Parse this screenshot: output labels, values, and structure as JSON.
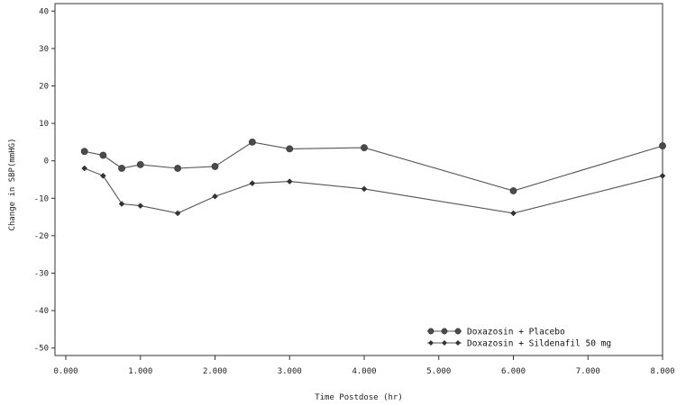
{
  "chart_data": {
    "type": "line",
    "title": "",
    "xlabel": "Time Postdose (hr)",
    "ylabel": "Change in SBP(mmHG)",
    "xlim": [
      0,
      8
    ],
    "ylim": [
      -52,
      42
    ],
    "x_ticks": [
      0,
      1,
      2,
      3,
      4,
      5,
      6,
      7,
      8
    ],
    "x_tick_labels": [
      "0.000",
      "1.000",
      "2.000",
      "3.000",
      "4.000",
      "5.000",
      "6.000",
      "7.000",
      "8.000"
    ],
    "y_ticks": [
      40,
      30,
      20,
      10,
      0,
      -10,
      -20,
      -30,
      -40,
      -50
    ],
    "y_tick_labels": [
      "40",
      "30",
      "20",
      "10",
      "0",
      "-10",
      "-20",
      "-30",
      "-40",
      "-50"
    ],
    "grid": false,
    "legend_position": "bottom-right",
    "series": [
      {
        "name": "Doxazosin + Placebo",
        "color": "#555555",
        "marker": "filled-circle",
        "x": [
          0.25,
          0.5,
          0.75,
          1.0,
          1.5,
          2.0,
          2.5,
          3.0,
          4.0,
          6.0,
          8.0
        ],
        "y": [
          2.5,
          1.5,
          -2.0,
          -1.0,
          -2.0,
          -1.5,
          5.0,
          3.2,
          3.5,
          -8.0,
          4.0
        ]
      },
      {
        "name": "Doxazosin + Sildenafil 50 mg",
        "color": "#555555",
        "marker": "small-diamond",
        "x": [
          0.25,
          0.5,
          0.75,
          1.0,
          1.5,
          2.0,
          2.5,
          3.0,
          4.0,
          6.0,
          8.0
        ],
        "y": [
          -2.0,
          -4.0,
          -11.5,
          -12.0,
          -14.0,
          -9.5,
          -6.0,
          -5.5,
          -7.5,
          -14.0,
          -4.0
        ]
      }
    ]
  }
}
